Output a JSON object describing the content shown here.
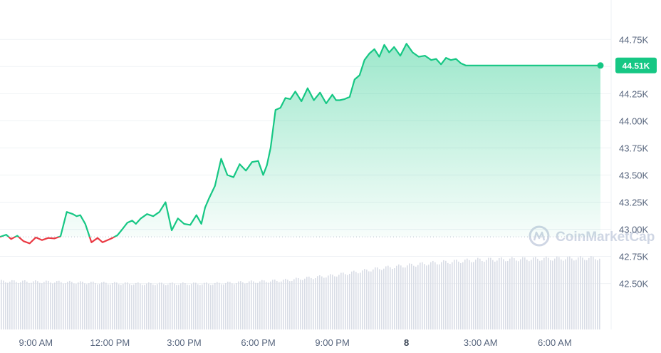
{
  "chart_data": {
    "type": "area",
    "title": "",
    "xlabel": "",
    "ylabel": "",
    "x_tick_labels": [
      "9:00 AM",
      "12:00 PM",
      "3:00 PM",
      "6:00 PM",
      "9:00 PM",
      "8",
      "3:00 AM",
      "6:00 AM"
    ],
    "x_tick_bold": "8",
    "y_tick_labels": [
      "44.75K",
      "44.50K",
      "44.25K",
      "44.00K",
      "43.75K",
      "43.50K",
      "43.25K",
      "43.00K",
      "42.75K",
      "42.50K"
    ],
    "y_tick_values": [
      44750,
      44500,
      44250,
      44000,
      43750,
      43500,
      43250,
      43000,
      42750,
      42500
    ],
    "ylim": [
      42300,
      44870
    ],
    "x_unit": "hours",
    "xlim": [
      7.55,
      31.85
    ],
    "baseline": 42930,
    "current_value": 44510,
    "current_label": "44.51K",
    "grid": true,
    "colors": {
      "up": "#16c784",
      "down": "#ea3943",
      "area_top": "#16c784",
      "badge": "#16c784",
      "volume": "#d9dde6",
      "grid": "#eff2f5",
      "baseline": "#b8c0cc"
    },
    "watermark": "CoinMarketCap",
    "series": [
      {
        "x": [
          7.55,
          7.8,
          8.0,
          8.25,
          8.5,
          8.75,
          9.0,
          9.25,
          9.5,
          9.75,
          10.0,
          10.25,
          10.5,
          10.65,
          10.8,
          11.0,
          11.25,
          11.5,
          11.7,
          11.9,
          12.1,
          12.3,
          12.5,
          12.7,
          12.9,
          13.05,
          13.25,
          13.5,
          13.75,
          14.0,
          14.25,
          14.5,
          14.75,
          15.0,
          15.25,
          15.5,
          15.7,
          15.85,
          16.0,
          16.25,
          16.5,
          16.75,
          17.0,
          17.25,
          17.5,
          17.75,
          18.0,
          18.2,
          18.35,
          18.5,
          18.7,
          18.9,
          19.1,
          19.3,
          19.5,
          19.75,
          20.0,
          20.25,
          20.5,
          20.75,
          21.0,
          21.15,
          21.3,
          21.5,
          21.7,
          21.9,
          22.1,
          22.3,
          22.5,
          22.7,
          22.9,
          23.1,
          23.3,
          23.5,
          23.75,
          24.0,
          24.25,
          24.5,
          24.75,
          25.0,
          25.2,
          25.4,
          25.6,
          25.8,
          26.0,
          26.2,
          26.4,
          26.6,
          26.8,
          27.0,
          27.2,
          27.4,
          27.6,
          27.8,
          28.0,
          28.25,
          28.5,
          28.75,
          29.0,
          29.25,
          29.5,
          29.75,
          30.0,
          30.25,
          30.5,
          30.75,
          31.0,
          31.25,
          31.5,
          31.7,
          31.85
        ],
        "y": [
          42930,
          42950,
          42910,
          42940,
          42890,
          42870,
          42925,
          42900,
          42920,
          42915,
          42935,
          43160,
          43140,
          43120,
          43130,
          43050,
          42880,
          42920,
          42880,
          42900,
          42920,
          42945,
          43000,
          43060,
          43080,
          43050,
          43100,
          43140,
          43120,
          43160,
          43250,
          42990,
          43100,
          43050,
          43040,
          43130,
          43050,
          43200,
          43280,
          43400,
          43650,
          43500,
          43480,
          43600,
          43540,
          43620,
          43630,
          43500,
          43590,
          43750,
          44100,
          44120,
          44210,
          44200,
          44270,
          44180,
          44300,
          44190,
          44260,
          44160,
          44240,
          44190,
          44190,
          44200,
          44220,
          44380,
          44420,
          44560,
          44620,
          44660,
          44590,
          44700,
          44630,
          44680,
          44600,
          44710,
          44630,
          44590,
          44600,
          44560,
          44570,
          44520,
          44580,
          44560,
          44570,
          44530,
          44510,
          44510,
          44510,
          44510,
          44510,
          44510,
          44510,
          44510,
          44510,
          44510,
          44510,
          44510,
          44510,
          44510,
          44510,
          44510,
          44510,
          44510,
          44510,
          44510,
          44510,
          44510,
          44510,
          44510,
          44510
        ]
      }
    ],
    "volume": {
      "x": [
        7.55,
        10.0,
        13.0,
        16.0,
        19.0,
        21.0,
        23.0,
        25.0,
        27.0,
        29.0,
        31.85
      ],
      "y": [
        0.58,
        0.57,
        0.55,
        0.55,
        0.59,
        0.65,
        0.74,
        0.8,
        0.84,
        0.85,
        0.86
      ]
    }
  }
}
